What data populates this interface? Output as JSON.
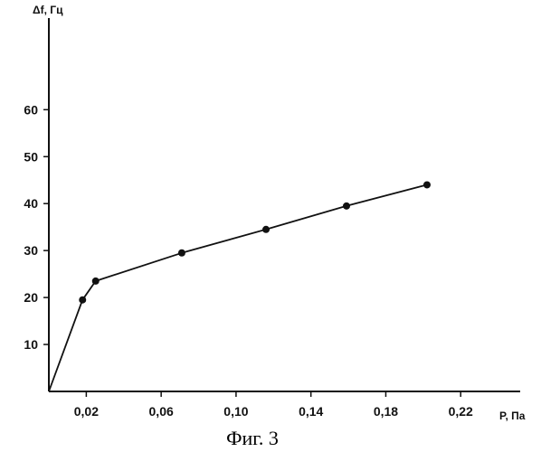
{
  "chart_data": {
    "type": "line",
    "title": "",
    "xlabel": "P, Па",
    "ylabel": "Δf, Гц",
    "caption": "Фиг. 3",
    "xlim": [
      0,
      0.26
    ],
    "ylim": [
      0,
      72
    ],
    "x_ticks": [
      {
        "value": 0.02,
        "label": "0,02"
      },
      {
        "value": 0.06,
        "label": "0,06"
      },
      {
        "value": 0.1,
        "label": "0,10"
      },
      {
        "value": 0.14,
        "label": "0,14"
      },
      {
        "value": 0.18,
        "label": "0,18"
      },
      {
        "value": 0.22,
        "label": "0,22"
      }
    ],
    "y_ticks": [
      {
        "value": 10,
        "label": "10"
      },
      {
        "value": 20,
        "label": "20"
      },
      {
        "value": 30,
        "label": "30"
      },
      {
        "value": 40,
        "label": "40"
      },
      {
        "value": 50,
        "label": "50"
      },
      {
        "value": 60,
        "label": "60"
      }
    ],
    "grid": false,
    "series": [
      {
        "line_start": {
          "x": 0,
          "y": 0
        },
        "points": [
          {
            "x": 0.018,
            "y": 19.5
          },
          {
            "x": 0.025,
            "y": 23.5
          },
          {
            "x": 0.071,
            "y": 29.5
          },
          {
            "x": 0.116,
            "y": 34.5
          },
          {
            "x": 0.159,
            "y": 39.5
          },
          {
            "x": 0.202,
            "y": 44
          }
        ],
        "color": "#111111"
      }
    ]
  }
}
